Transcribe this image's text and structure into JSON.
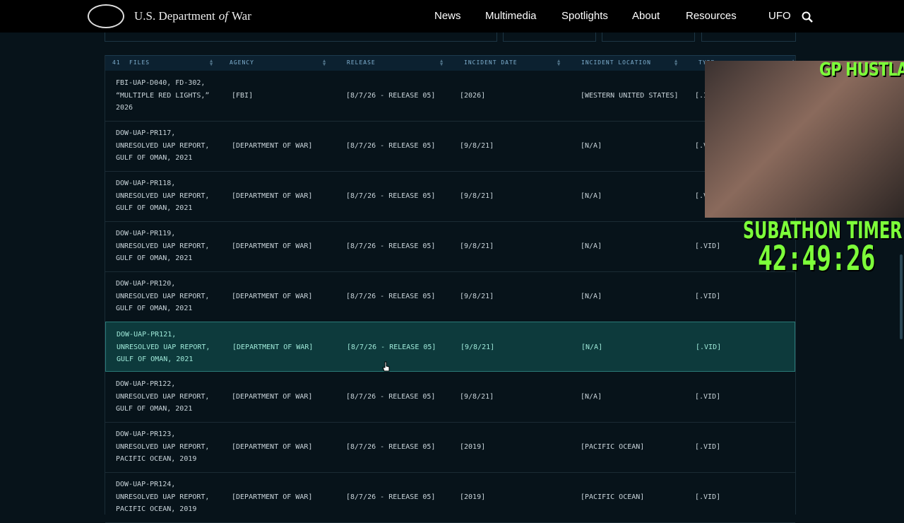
{
  "header": {
    "brand": [
      "U.S. Department",
      "of",
      "War"
    ],
    "nav": [
      "News",
      "Multimedia",
      "Spotlights",
      "About",
      "Resources",
      "UFO"
    ]
  },
  "table": {
    "count": "41",
    "columns": [
      "FILES",
      "AGENCY",
      "RELEASE",
      "INCIDENT DATE",
      "INCIDENT LOCATION",
      "TYPE"
    ],
    "rows": [
      [
        [
          "FBI-UAP-D040, FD-302,",
          "“MULTIPLE RED LIGHTS,”",
          "2026"
        ],
        "[FBI]",
        "[8/7/26 - RELEASE 05]",
        "[2026]",
        "[WESTERN UNITED STATES]",
        "[.IMG]"
      ],
      [
        [
          "DOW-UAP-PR117,",
          "UNRESOLVED UAP REPORT,",
          "GULF OF OMAN, 2021"
        ],
        "[DEPARTMENT OF WAR]",
        "[8/7/26 - RELEASE 05]",
        "[9/8/21]",
        "[N/A]",
        "[.VID]"
      ],
      [
        [
          "DOW-UAP-PR118,",
          "UNRESOLVED UAP REPORT,",
          "GULF OF OMAN, 2021"
        ],
        "[DEPARTMENT OF WAR]",
        "[8/7/26 - RELEASE 05]",
        "[9/8/21]",
        "[N/A]",
        "[.VID]"
      ],
      [
        [
          "DOW-UAP-PR119,",
          "UNRESOLVED UAP REPORT,",
          "GULF OF OMAN, 2021"
        ],
        "[DEPARTMENT OF WAR]",
        "[8/7/26 - RELEASE 05]",
        "[9/8/21]",
        "[N/A]",
        "[.VID]"
      ],
      [
        [
          "DOW-UAP-PR120,",
          "UNRESOLVED UAP REPORT,",
          "GULF OF OMAN, 2021"
        ],
        "[DEPARTMENT OF WAR]",
        "[8/7/26 - RELEASE 05]",
        "[9/8/21]",
        "[N/A]",
        "[.VID]"
      ],
      [
        [
          "DOW-UAP-PR121,",
          "UNRESOLVED UAP REPORT,",
          "GULF OF OMAN, 2021"
        ],
        "[DEPARTMENT OF WAR]",
        "[8/7/26 - RELEASE 05]",
        "[9/8/21]",
        "[N/A]",
        "[.VID]"
      ],
      [
        [
          "DOW-UAP-PR122,",
          "UNRESOLVED UAP REPORT,",
          "GULF OF OMAN, 2021"
        ],
        "[DEPARTMENT OF WAR]",
        "[8/7/26 - RELEASE 05]",
        "[9/8/21]",
        "[N/A]",
        "[.VID]"
      ],
      [
        [
          "DOW-UAP-PR123,",
          "UNRESOLVED UAP REPORT,",
          "PACIFIC OCEAN, 2019"
        ],
        "[DEPARTMENT OF WAR]",
        "[8/7/26 - RELEASE 05]",
        "[2019]",
        "[PACIFIC OCEAN]",
        "[.VID]"
      ],
      [
        [
          "DOW-UAP-PR124,",
          "UNRESOLVED UAP REPORT,",
          "PACIFIC OCEAN, 2019"
        ],
        "[DEPARTMENT OF WAR]",
        "[8/7/26 - RELEASE 05]",
        "[2019]",
        "[PACIFIC OCEAN]",
        "[.VID]"
      ]
    ]
  },
  "overlay": {
    "channel": "GP HUSTLA",
    "timer_label": "SUBATHON TIMER",
    "timer": "42:49:26"
  }
}
